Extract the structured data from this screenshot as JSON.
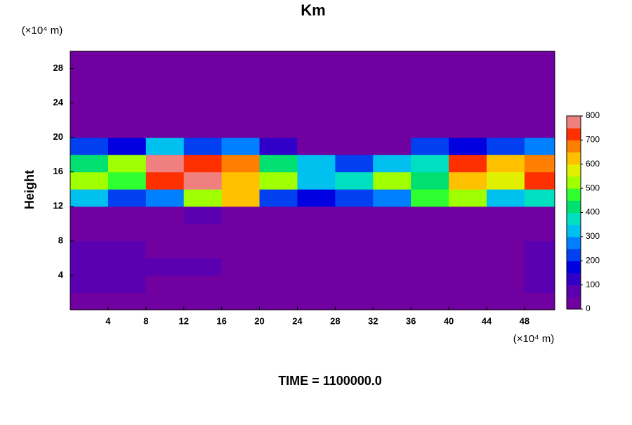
{
  "chart_data": {
    "type": "contour",
    "title": "Km",
    "y_unit": "(×10⁴ m)",
    "x_unit": "(×10⁴ m)",
    "ylabel": "Height",
    "caption": "TIME = 1100000.0",
    "xlim": [
      0,
      51.2
    ],
    "ylim": [
      0,
      30
    ],
    "xticks": [
      4,
      8,
      12,
      16,
      20,
      24,
      28,
      32,
      36,
      40,
      44,
      48
    ],
    "yticks": [
      4,
      8,
      12,
      16,
      20,
      24,
      28
    ],
    "x": [
      2,
      6,
      10,
      14,
      18,
      22,
      26,
      30,
      34,
      38,
      42,
      46,
      50
    ],
    "y": [
      1,
      3,
      5,
      7,
      9,
      11,
      13,
      15,
      17,
      19,
      21,
      23,
      25,
      27,
      29
    ],
    "z": [
      [
        20,
        20,
        20,
        20,
        20,
        20,
        20,
        20,
        20,
        20,
        20,
        20,
        20
      ],
      [
        60,
        60,
        40,
        40,
        20,
        20,
        20,
        40,
        20,
        20,
        20,
        40,
        60
      ],
      [
        80,
        80,
        60,
        70,
        40,
        20,
        20,
        20,
        20,
        20,
        20,
        40,
        80
      ],
      [
        60,
        60,
        40,
        40,
        20,
        20,
        20,
        20,
        20,
        20,
        20,
        20,
        60
      ],
      [
        0,
        0,
        0,
        0,
        0,
        0,
        0,
        0,
        0,
        0,
        0,
        0,
        0
      ],
      [
        20,
        0,
        0,
        60,
        20,
        0,
        0,
        0,
        0,
        0,
        0,
        0,
        0
      ],
      [
        300,
        200,
        250,
        500,
        600,
        200,
        150,
        200,
        250,
        450,
        500,
        300,
        350
      ],
      [
        500,
        450,
        700,
        800,
        600,
        500,
        300,
        350,
        500,
        400,
        600,
        550,
        700
      ],
      [
        400,
        500,
        800,
        700,
        650,
        400,
        300,
        200,
        300,
        350,
        700,
        600,
        650
      ],
      [
        200,
        150,
        300,
        200,
        250,
        100,
        0,
        0,
        0,
        200,
        150,
        200,
        250
      ],
      [
        0,
        0,
        0,
        0,
        0,
        0,
        0,
        0,
        0,
        0,
        0,
        0,
        0
      ],
      [
        0,
        0,
        0,
        0,
        0,
        0,
        0,
        0,
        0,
        0,
        0,
        0,
        0
      ],
      [
        0,
        0,
        0,
        0,
        0,
        0,
        0,
        0,
        0,
        0,
        0,
        0,
        0
      ],
      [
        0,
        0,
        0,
        0,
        0,
        0,
        0,
        0,
        0,
        0,
        0,
        0,
        0
      ],
      [
        0,
        0,
        0,
        0,
        0,
        0,
        0,
        0,
        0,
        0,
        0,
        0,
        0
      ]
    ],
    "zlim": [
      0,
      800
    ],
    "zticks": [
      0,
      100,
      200,
      300,
      400,
      500,
      600,
      700,
      800
    ],
    "colors": [
      "#7000a0",
      "#5a00b0",
      "#3000c8",
      "#0000e0",
      "#0040f0",
      "#0080ff",
      "#00c0f0",
      "#00e0c0",
      "#00e070",
      "#30ff30",
      "#a0ff00",
      "#e0f000",
      "#ffc000",
      "#ff8000",
      "#ff3000",
      "#f08080"
    ]
  }
}
